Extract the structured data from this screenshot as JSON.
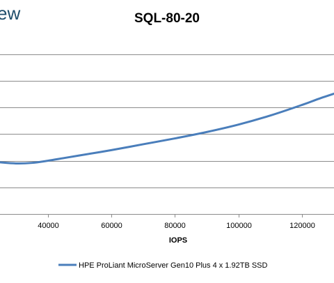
{
  "watermark_text": "ew",
  "chart_data": {
    "type": "line",
    "title": "SQL-80-20",
    "xlabel": "IOPS",
    "ylabel": "",
    "xlim": [
      25000,
      130000
    ],
    "ylim": [
      0.5,
      3.8
    ],
    "x_ticks": [
      40000,
      60000,
      80000,
      100000,
      120000
    ],
    "x_tick_labels": [
      "40000",
      "60000",
      "80000",
      "100000",
      "120000"
    ],
    "y_gridlines": [
      1.0,
      1.5,
      2.0,
      2.5,
      3.0,
      3.5
    ],
    "grid": true,
    "legend_position": "bottom",
    "series": [
      {
        "name": "HPE ProLiant MicroServer Gen10 Plus 4 x 1.92TB SSD",
        "color": "#4a7ebb",
        "x": [
          25000,
          30000,
          35000,
          40000,
          45000,
          50000,
          60000,
          70000,
          80000,
          90000,
          100000,
          110000,
          120000,
          125000,
          130000
        ],
        "y": [
          1.47,
          1.45,
          1.46,
          1.5,
          1.55,
          1.6,
          1.7,
          1.81,
          1.92,
          2.04,
          2.18,
          2.35,
          2.55,
          2.66,
          2.76
        ]
      }
    ]
  }
}
